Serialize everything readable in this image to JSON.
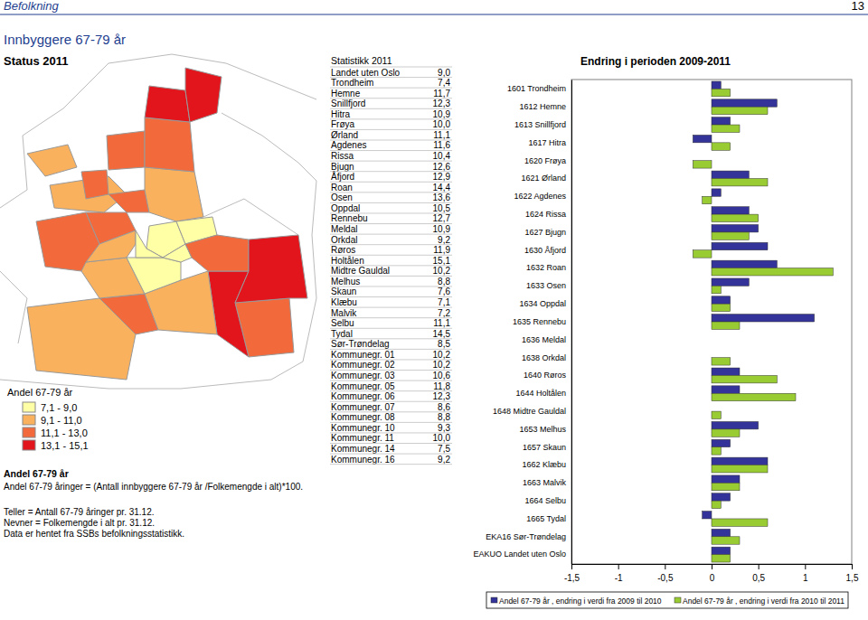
{
  "page": {
    "section": "Befolkning",
    "number": "13",
    "title": "Innbyggere 67-79 år",
    "status": "Status 2011"
  },
  "map": {
    "legend_title": "Andel 67-79 år",
    "classes": [
      {
        "label": "7,1 - 9,0",
        "color": "#ffffa6"
      },
      {
        "label": "9,1 - 11,0",
        "color": "#f9b15e"
      },
      {
        "label": "11,1 - 13,0",
        "color": "#f26a3b"
      },
      {
        "label": "13,1 - 15,1",
        "color": "#e3151c"
      }
    ],
    "regions": [
      0,
      2,
      2,
      1,
      1,
      2,
      2,
      1,
      2,
      2,
      3,
      3,
      1,
      2,
      1,
      1,
      2,
      3,
      1,
      0,
      0,
      0,
      0,
      2,
      3
    ]
  },
  "definition": {
    "title": "Andel 67-79 år",
    "text": "Andel 67-79 åringer = (Antall innbyggere 67-79 år /Folkemengde i alt)*100."
  },
  "notes": [
    "Teller = Antall 67-79 åringer pr. 31.12.",
    "Nevner = Folkemengde i alt pr. 31.12.",
    "Data er hentet fra SSBs befolkningsstatistikk."
  ],
  "table": {
    "title": "Statistikk 2011",
    "rows": [
      [
        "Landet uten Oslo",
        "9,0"
      ],
      [
        "Trondheim",
        "7,4"
      ],
      [
        "Hemne",
        "11,7"
      ],
      [
        "Snillfjord",
        "12,3"
      ],
      [
        "Hitra",
        "10,9"
      ],
      [
        "Frøya",
        "10,0"
      ],
      [
        "Ørland",
        "11,1"
      ],
      [
        "Agdenes",
        "11,6"
      ],
      [
        "Rissa",
        "10,4"
      ],
      [
        "Bjugn",
        "12,6"
      ],
      [
        "Åfjord",
        "12,9"
      ],
      [
        "Roan",
        "14,4"
      ],
      [
        "Osen",
        "13,6"
      ],
      [
        "Oppdal",
        "10,5"
      ],
      [
        "Rennebu",
        "12,7"
      ],
      [
        "Meldal",
        "10,9"
      ],
      [
        "Orkdal",
        "9,2"
      ],
      [
        "Røros",
        "11,9"
      ],
      [
        "Holtålen",
        "15,1"
      ],
      [
        "Midtre Gauldal",
        "10,2"
      ],
      [
        "Melhus",
        "8,8"
      ],
      [
        "Skaun",
        "7,6"
      ],
      [
        "Klæbu",
        "7,1"
      ],
      [
        "Malvik",
        "7,2"
      ],
      [
        "Selbu",
        "11,1"
      ],
      [
        "Tydal",
        "14,5"
      ],
      [
        "Sør-Trøndelag",
        "8,5"
      ],
      [
        "Kommunegr. 01",
        "10,2"
      ],
      [
        "Kommunegr. 02",
        "10,2"
      ],
      [
        "Kommunegr. 03",
        "10,6"
      ],
      [
        "Kommunegr. 05",
        "11,8"
      ],
      [
        "Kommunegr. 06",
        "12,3"
      ],
      [
        "Kommunegr. 07",
        "8,6"
      ],
      [
        "Kommunegr. 08",
        "8,8"
      ],
      [
        "Kommunegr. 10",
        "9,3"
      ],
      [
        "Kommunegr. 11",
        "10,0"
      ],
      [
        "Kommunegr. 14",
        "7,5"
      ],
      [
        "Kommunegr. 16",
        "9,2"
      ]
    ]
  },
  "chart_data": {
    "type": "bar",
    "orientation": "horizontal",
    "title": "Endring i perioden 2009-2011",
    "categories": [
      "1601 Trondheim",
      "1612 Hemne",
      "1613 Snillfjord",
      "1617 Hitra",
      "1620 Frøya",
      "1621 Ørland",
      "1622 Agdenes",
      "1624 Rissa",
      "1627 Bjugn",
      "1630 Åfjord",
      "1632 Roan",
      "1633 Osen",
      "1634 Oppdal",
      "1635 Rennebu",
      "1636 Meldal",
      "1638 Orkdal",
      "1640 Røros",
      "1644 Holtålen",
      "1648 Midtre Gauldal",
      "1653 Melhus",
      "1657 Skaun",
      "1662 Klæbu",
      "1663 Malvik",
      "1664 Selbu",
      "1665 Tydal",
      "EKA16 Sør-Trøndelag",
      "EAKUO Landet uten Oslo"
    ],
    "series": [
      {
        "name": "Andel 67-79 år , endring i verdi fra 2009 til 2010",
        "color": "#333399",
        "values": [
          0.1,
          0.7,
          0.2,
          -0.2,
          0,
          0.4,
          0.1,
          0.4,
          0.5,
          0.6,
          0.7,
          0.4,
          0.2,
          1.1,
          0,
          0,
          0.3,
          0.3,
          0,
          0.5,
          0.2,
          0.6,
          0.3,
          0.2,
          -0.1,
          0.2,
          0.2
        ]
      },
      {
        "name": "Andel 67-79 år , endring i verdi fra 2010 til 2011",
        "color": "#99cc33",
        "values": [
          0.2,
          0.6,
          0.3,
          0.2,
          -0.2,
          0.6,
          -0.1,
          0.5,
          0.4,
          -0.2,
          1.3,
          0.1,
          0.2,
          0.3,
          0,
          0.2,
          0.7,
          0.9,
          0.1,
          0.3,
          0.1,
          0.6,
          0.3,
          0.1,
          0.6,
          0.3,
          0.2
        ]
      }
    ],
    "xlim": [
      -1.5,
      1.5
    ],
    "xticks": [
      {
        "value": -1.5,
        "label": "-1,5"
      },
      -1,
      {
        "value": -0.5,
        "label": "-0,5"
      },
      0,
      {
        "value": 0.5,
        "label": "0,5"
      },
      1,
      {
        "value": 1.5,
        "label": "1,5"
      }
    ],
    "grid": false,
    "legend": "bottom"
  }
}
